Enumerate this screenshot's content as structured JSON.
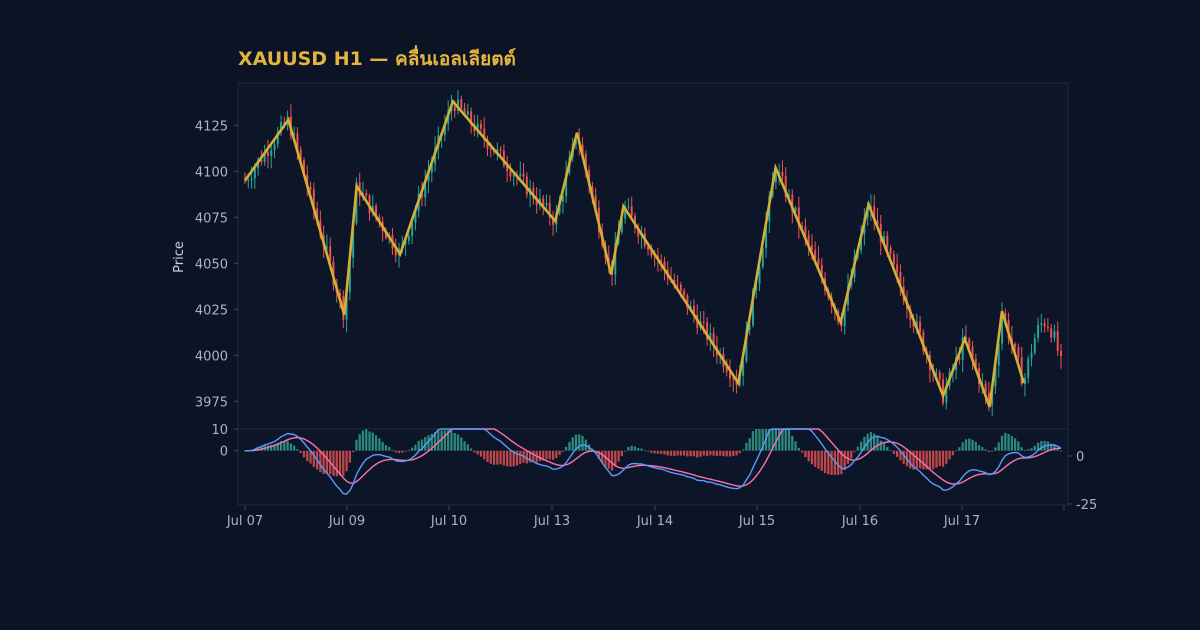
{
  "title": "XAUUSD H1 — คลื่นเอลเลียตต์",
  "colors": {
    "background": "#0b1324",
    "panel": "#0d1628",
    "border": "#1f2a40",
    "title": "#e3b53f",
    "candle_up": "#26a69a",
    "candle_down": "#ef5350",
    "zigzag": "#d4af37",
    "macd_line": "#5b9cf6",
    "signal_line": "#ff6fb0",
    "hist_pos": "#2b8a7e",
    "hist_neg": "#c0474a"
  },
  "chart_data": [
    {
      "type": "candlestick",
      "ylabel": "Price",
      "ylim": [
        3960,
        4148
      ],
      "yticks": [
        4125,
        4100,
        4075,
        4050,
        4025,
        4000,
        3975
      ],
      "x_range": [
        "2025-07-07 00:00",
        "2025-07-17 23:00"
      ],
      "zigzag_waypoints": [
        {
          "t": "2025-07-07 00:00",
          "p": 4095
        },
        {
          "t": "2025-07-07 14:00",
          "p": 4128
        },
        {
          "t": "2025-07-08 08:00",
          "p": 4022
        },
        {
          "t": "2025-07-08 12:00",
          "p": 4092
        },
        {
          "t": "2025-07-09 02:00",
          "p": 4055
        },
        {
          "t": "2025-07-09 19:00",
          "p": 4138
        },
        {
          "t": "2025-07-11 04:00",
          "p": 4073
        },
        {
          "t": "2025-07-11 11:00",
          "p": 4121
        },
        {
          "t": "2025-07-11 22:00",
          "p": 4044
        },
        {
          "t": "2025-07-12 02:00",
          "p": 4081
        },
        {
          "t": "2025-07-13 15:00",
          "p": 3985
        },
        {
          "t": "2025-07-14 03:00",
          "p": 4102
        },
        {
          "t": "2025-07-15 00:00",
          "p": 4018
        },
        {
          "t": "2025-07-15 09:00",
          "p": 4082
        },
        {
          "t": "2025-07-16 09:00",
          "p": 3978
        },
        {
          "t": "2025-07-16 16:00",
          "p": 4009
        },
        {
          "t": "2025-07-17 00:00",
          "p": 3972
        },
        {
          "t": "2025-07-17 04:00",
          "p": 4024
        },
        {
          "t": "2025-07-17 11:00",
          "p": 3985
        }
      ],
      "candle_count": 250,
      "last_close": 4006
    },
    {
      "type": "macd",
      "ylim": [
        -25,
        10
      ],
      "left_ticks": [
        10,
        0
      ],
      "right_ticks": [
        0,
        -25
      ],
      "x_labels": [
        "Jul 07",
        "Jul 09",
        "Jul 10",
        "Jul 13",
        "Jul 14",
        "Jul 15",
        "Jul 16",
        "Jul 17"
      ]
    }
  ]
}
